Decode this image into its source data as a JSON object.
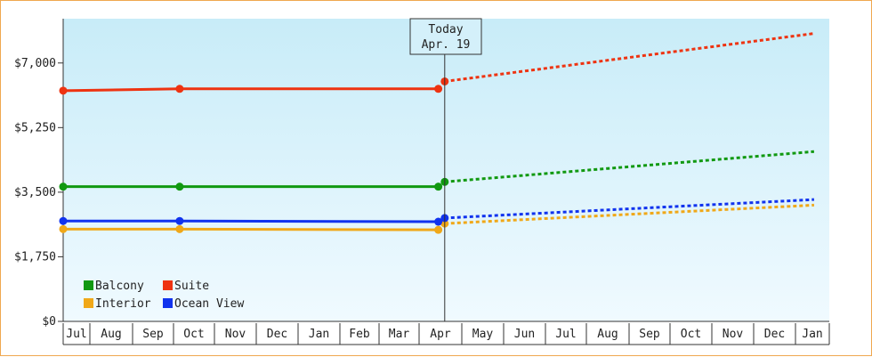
{
  "chart_data": {
    "type": "line",
    "x_months": [
      "Jul",
      "Aug",
      "Sep",
      "Oct",
      "Nov",
      "Dec",
      "Jan",
      "Feb",
      "Mar",
      "Apr",
      "May",
      "Jun",
      "Jul",
      "Aug",
      "Sep",
      "Oct",
      "Nov",
      "Dec",
      "Jan"
    ],
    "y_ticks": [
      "$0",
      "$1,750",
      "$3,500",
      "$5,250",
      "$7,000"
    ],
    "ylim": [
      0,
      8200
    ],
    "today_marker": {
      "line1": "Today",
      "line2": "Apr. 19",
      "x": 9.6
    },
    "legend": [
      {
        "name": "Balcony",
        "color": "#119911"
      },
      {
        "name": "Suite",
        "color": "#ee3311"
      },
      {
        "name": "Interior",
        "color": "#f0a818"
      },
      {
        "name": "Ocean View",
        "color": "#1133ee"
      }
    ],
    "series": [
      {
        "name": "Balcony",
        "color": "#119911",
        "history": [
          [
            0,
            3650
          ],
          [
            3.15,
            3650
          ],
          [
            9.45,
            3650
          ]
        ],
        "forecast": [
          [
            9.6,
            3780
          ],
          [
            18.55,
            4600
          ]
        ]
      },
      {
        "name": "Suite",
        "color": "#ee3311",
        "history": [
          [
            0,
            6250
          ],
          [
            3.15,
            6300
          ],
          [
            9.45,
            6300
          ]
        ],
        "forecast": [
          [
            9.6,
            6500
          ],
          [
            18.55,
            7800
          ]
        ]
      },
      {
        "name": "Interior",
        "color": "#f0a818",
        "history": [
          [
            0,
            2500
          ],
          [
            3.15,
            2500
          ],
          [
            9.45,
            2480
          ]
        ],
        "forecast": [
          [
            9.6,
            2650
          ],
          [
            18.55,
            3150
          ]
        ]
      },
      {
        "name": "Ocean View",
        "color": "#1133ee",
        "history": [
          [
            0,
            2720
          ],
          [
            3.15,
            2720
          ],
          [
            9.45,
            2700
          ]
        ],
        "forecast": [
          [
            9.6,
            2800
          ],
          [
            18.55,
            3300
          ]
        ]
      }
    ],
    "grid": false,
    "legend_placement": "bottom-left"
  }
}
